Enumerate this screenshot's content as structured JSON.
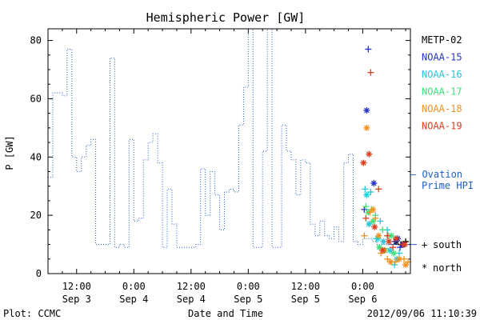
{
  "chart_data": {
    "type": "line",
    "title": "Hemispheric Power [GW]",
    "ylabel": "P [GW]",
    "xlabel": "Date and Time",
    "ylim": [
      0,
      84
    ],
    "yticks": [
      0,
      20,
      40,
      60,
      80
    ],
    "xlim": [
      "2012-09-03 06:00",
      "2012-09-06 10:00"
    ],
    "xticks": [
      {
        "at": "2012-09-03 12:00",
        "time": "12:00",
        "date": "Sep 3"
      },
      {
        "at": "2012-09-04 00:00",
        "time": "0:00",
        "date": "Sep 4"
      },
      {
        "at": "2012-09-04 12:00",
        "time": "12:00",
        "date": "Sep 4"
      },
      {
        "at": "2012-09-05 00:00",
        "time": "0:00",
        "date": "Sep 5"
      },
      {
        "at": "2012-09-05 12:00",
        "time": "12:00",
        "date": "Sep 5"
      },
      {
        "at": "2012-09-06 00:00",
        "time": "0:00",
        "date": "Sep 6"
      }
    ],
    "footer_left": "Plot: CCMC",
    "footer_right": "2012/09/06 11:10:39",
    "ovation_label_1": "— Ovation",
    "ovation_label_2": "Prime HPI",
    "ovation_color": "#1f5fc8",
    "ovation": {
      "name": "Ovation Prime HPI",
      "color": "#1f5fc8",
      "points": [
        [
          "2012-09-03 06:00",
          33
        ],
        [
          "2012-09-03 07:00",
          62
        ],
        [
          "2012-09-03 09:00",
          61
        ],
        [
          "2012-09-03 10:00",
          77
        ],
        [
          "2012-09-03 11:00",
          40
        ],
        [
          "2012-09-03 12:00",
          35
        ],
        [
          "2012-09-03 13:00",
          40
        ],
        [
          "2012-09-03 14:00",
          44
        ],
        [
          "2012-09-03 15:00",
          46
        ],
        [
          "2012-09-03 16:00",
          10
        ],
        [
          "2012-09-03 19:00",
          74
        ],
        [
          "2012-09-03 20:00",
          9
        ],
        [
          "2012-09-03 21:00",
          10
        ],
        [
          "2012-09-03 22:00",
          9
        ],
        [
          "2012-09-03 23:00",
          46
        ],
        [
          "2012-09-04 00:00",
          18
        ],
        [
          "2012-09-04 01:00",
          19
        ],
        [
          "2012-09-04 02:00",
          39
        ],
        [
          "2012-09-04 03:00",
          45
        ],
        [
          "2012-09-04 04:00",
          48
        ],
        [
          "2012-09-04 05:00",
          38
        ],
        [
          "2012-09-04 06:00",
          9
        ],
        [
          "2012-09-04 07:00",
          29
        ],
        [
          "2012-09-04 08:00",
          17
        ],
        [
          "2012-09-04 09:00",
          9
        ],
        [
          "2012-09-04 13:00",
          10
        ],
        [
          "2012-09-04 14:00",
          36
        ],
        [
          "2012-09-04 15:00",
          20
        ],
        [
          "2012-09-04 16:00",
          35
        ],
        [
          "2012-09-04 17:00",
          27
        ],
        [
          "2012-09-04 18:00",
          15
        ],
        [
          "2012-09-04 19:00",
          28
        ],
        [
          "2012-09-04 20:00",
          29
        ],
        [
          "2012-09-04 21:00",
          28
        ],
        [
          "2012-09-04 22:00",
          51
        ],
        [
          "2012-09-04 23:00",
          64
        ],
        [
          "2012-09-05 00:00",
          90
        ],
        [
          "2012-09-05 01:00",
          9
        ],
        [
          "2012-09-05 03:00",
          42
        ],
        [
          "2012-09-05 04:00",
          90
        ],
        [
          "2012-09-05 05:00",
          9
        ],
        [
          "2012-09-05 07:00",
          51
        ],
        [
          "2012-09-05 08:00",
          42
        ],
        [
          "2012-09-05 09:00",
          39
        ],
        [
          "2012-09-05 10:00",
          27
        ],
        [
          "2012-09-05 11:00",
          39
        ],
        [
          "2012-09-05 12:00",
          38
        ],
        [
          "2012-09-05 13:00",
          17
        ],
        [
          "2012-09-05 14:00",
          13
        ],
        [
          "2012-09-05 15:00",
          18
        ],
        [
          "2012-09-05 16:00",
          13
        ],
        [
          "2012-09-05 17:00",
          12
        ],
        [
          "2012-09-05 18:00",
          16
        ],
        [
          "2012-09-05 19:00",
          11
        ],
        [
          "2012-09-05 20:00",
          38
        ],
        [
          "2012-09-05 21:00",
          41
        ],
        [
          "2012-09-05 22:00",
          11
        ],
        [
          "2012-09-05 23:00",
          10
        ],
        [
          "2012-09-06 00:00",
          12
        ],
        [
          "2012-09-06 02:00",
          11
        ],
        [
          "2012-09-06 03:00",
          10
        ],
        [
          "2012-09-06 10:00",
          10
        ]
      ]
    },
    "series": [
      {
        "name": "METP-02",
        "color": "#000000",
        "south": [
          [
            "2012-09-06 08:00",
            10
          ],
          [
            "2012-09-06 09:00",
            11
          ]
        ],
        "north": [
          [
            "2012-09-06 07:00",
            11
          ],
          [
            "2012-09-06 08:30",
            10
          ]
        ]
      },
      {
        "name": "NOAA-15",
        "color": "#2533c4",
        "south": [
          [
            "2012-09-06 00:20",
            22
          ],
          [
            "2012-09-06 01:10",
            77
          ],
          [
            "2012-09-06 06:50",
            11
          ],
          [
            "2012-09-06 07:50",
            9
          ]
        ],
        "north": [
          [
            "2012-09-06 00:50",
            56
          ],
          [
            "2012-09-06 02:20",
            31
          ],
          [
            "2012-09-06 07:20",
            12
          ],
          [
            "2012-09-06 08:20",
            10
          ]
        ]
      },
      {
        "name": "NOAA-16",
        "color": "#22c8dc",
        "south": [
          [
            "2012-09-06 00:30",
            29
          ],
          [
            "2012-09-06 01:40",
            28
          ],
          [
            "2012-09-06 02:50",
            12
          ],
          [
            "2012-09-06 03:40",
            18
          ],
          [
            "2012-09-06 05:10",
            15
          ],
          [
            "2012-09-06 06:40",
            3
          ],
          [
            "2012-09-06 07:40",
            7
          ]
        ],
        "north": [
          [
            "2012-09-06 00:50",
            27
          ],
          [
            "2012-09-06 01:20",
            17
          ],
          [
            "2012-09-06 03:10",
            12
          ],
          [
            "2012-09-06 04:20",
            11
          ],
          [
            "2012-09-06 05:40",
            8
          ],
          [
            "2012-09-06 07:10",
            5
          ]
        ]
      },
      {
        "name": "NOAA-17",
        "color": "#3ee07a",
        "south": [
          [
            "2012-09-06 00:40",
            23
          ],
          [
            "2012-09-06 01:50",
            22
          ],
          [
            "2012-09-06 02:40",
            20
          ],
          [
            "2012-09-06 04:10",
            15
          ],
          [
            "2012-09-06 05:20",
            13
          ]
        ],
        "north": [
          [
            "2012-09-06 01:10",
            21
          ],
          [
            "2012-09-06 02:10",
            18
          ],
          [
            "2012-09-06 03:30",
            9
          ],
          [
            "2012-09-06 04:40",
            8
          ],
          [
            "2012-09-06 06:00",
            13
          ],
          [
            "2012-09-06 06:30",
            7
          ]
        ]
      },
      {
        "name": "NOAA-18",
        "color": "#f2921e",
        "south": [
          [
            "2012-09-06 00:20",
            13
          ],
          [
            "2012-09-06 01:30",
            21
          ],
          [
            "2012-09-06 02:40",
            19
          ],
          [
            "2012-09-06 03:50",
            7
          ],
          [
            "2012-09-06 05:10",
            5
          ],
          [
            "2012-09-06 06:50",
            4
          ],
          [
            "2012-09-06 08:40",
            5
          ],
          [
            "2012-09-06 09:30",
            4
          ]
        ],
        "north": [
          [
            "2012-09-06 00:50",
            50
          ],
          [
            "2012-09-06 02:10",
            22
          ],
          [
            "2012-09-06 03:20",
            13
          ],
          [
            "2012-09-06 04:30",
            8
          ],
          [
            "2012-09-06 05:50",
            4
          ],
          [
            "2012-09-06 07:40",
            5
          ],
          [
            "2012-09-06 09:00",
            3
          ]
        ]
      },
      {
        "name": "NOAA-19",
        "color": "#e03e1e",
        "south": [
          [
            "2012-09-06 00:40",
            19
          ],
          [
            "2012-09-06 01:40",
            69
          ],
          [
            "2012-09-06 03:20",
            29
          ],
          [
            "2012-09-06 05:10",
            13
          ],
          [
            "2012-09-06 06:20",
            9
          ],
          [
            "2012-09-06 08:20",
            10
          ]
        ],
        "north": [
          [
            "2012-09-06 00:10",
            38
          ],
          [
            "2012-09-06 01:20",
            41
          ],
          [
            "2012-09-06 02:30",
            16
          ],
          [
            "2012-09-06 04:10",
            8
          ],
          [
            "2012-09-06 05:30",
            11
          ],
          [
            "2012-09-06 07:00",
            12
          ],
          [
            "2012-09-06 08:50",
            10
          ]
        ]
      }
    ],
    "symbol_legend": [
      {
        "symbol": "+",
        "label": "south"
      },
      {
        "symbol": "*",
        "label": "north"
      }
    ]
  }
}
